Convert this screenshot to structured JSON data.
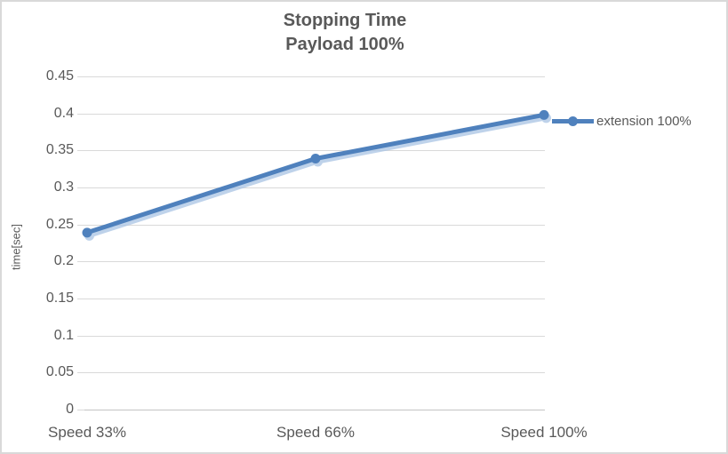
{
  "chart_data": {
    "type": "line",
    "title": "Stopping Time",
    "subtitle": "Payload 100%",
    "ylabel": "time[sec]",
    "xlabel": "",
    "categories": [
      "Speed 33%",
      "Speed 66%",
      "Speed 100%"
    ],
    "series": [
      {
        "name": "extension 100%",
        "values": [
          0.239,
          0.339,
          0.398
        ]
      }
    ],
    "ylim": [
      0,
      0.45
    ],
    "ytick_step": 0.05,
    "yticks": [
      "0",
      "0.05",
      "0.1",
      "0.15",
      "0.2",
      "0.25",
      "0.3",
      "0.35",
      "0.4",
      "0.45"
    ],
    "grid": true,
    "legend_position": "right",
    "colors": {
      "series": "#4F81BD",
      "series_shadow": "#A9C4E4",
      "text": "#595959",
      "gridline": "#D9D9D9",
      "axis_line": "#C3C3C3",
      "tick": "#D9D9D9",
      "border": "#D9D9D9"
    }
  }
}
